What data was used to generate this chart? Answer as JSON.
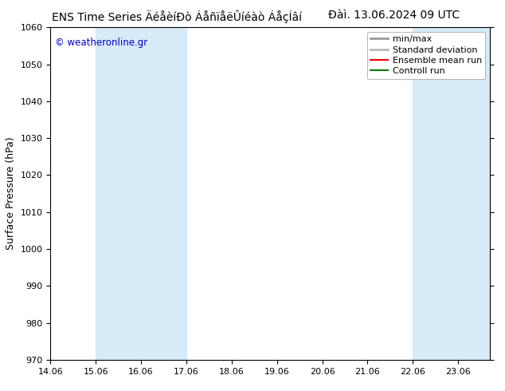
{
  "title_left": "ENS Time Series ÄéåèíÐò ÁåñïåëÛíéàò ÁåçÍâí",
  "title_right": "Ðàì. 13.06.2024 09 UTC",
  "ylabel": "Surface Pressure (hPa)",
  "ylim": [
    970,
    1060
  ],
  "yticks": [
    970,
    980,
    990,
    1000,
    1010,
    1020,
    1030,
    1040,
    1050,
    1060
  ],
  "xtick_labels": [
    "14.06",
    "15.06",
    "16.06",
    "17.06",
    "18.06",
    "19.06",
    "20.06",
    "21.06",
    "22.06",
    "23.06"
  ],
  "xtick_positions": [
    0,
    1,
    2,
    3,
    4,
    5,
    6,
    7,
    8,
    9
  ],
  "xlim": [
    0,
    9.7
  ],
  "shaded_regions": [
    {
      "xmin": 1.0,
      "xmax": 3.0,
      "color": "#d6eaf8"
    },
    {
      "xmin": 8.0,
      "xmax": 9.7,
      "color": "#d6eaf8"
    }
  ],
  "watermark": "© weatheronline.gr",
  "watermark_color": "#0000cc",
  "legend_labels": [
    "min/max",
    "Standard deviation",
    "Ensemble mean run",
    "Controll run"
  ],
  "legend_colors_line": [
    "#999999",
    "#bbbbbb",
    "#ff0000",
    "#008000"
  ],
  "bg_color": "#ffffff",
  "plot_bg_color": "#ffffff",
  "title_fontsize": 10,
  "tick_fontsize": 8,
  "ylabel_fontsize": 9,
  "legend_fontsize": 8
}
